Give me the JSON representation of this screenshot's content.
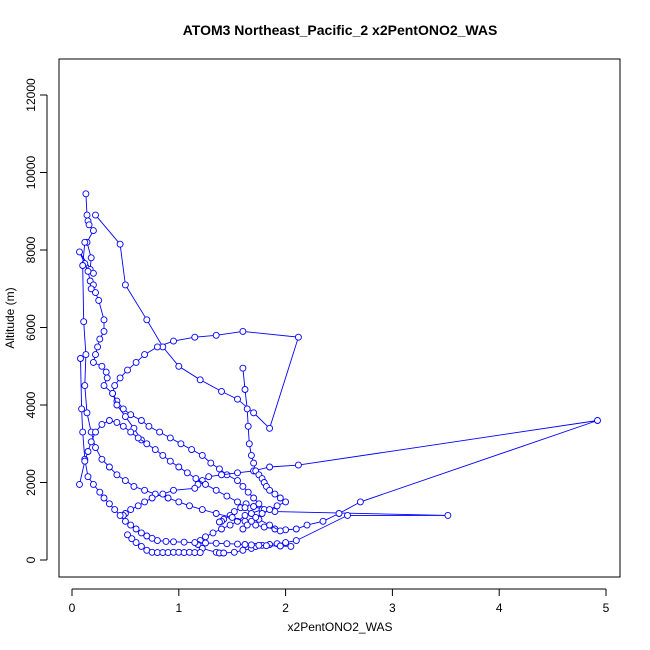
{
  "chart_data": {
    "type": "line",
    "title": "ATOM3 Northeast_Pacific_2 x2PentONO2_WAS",
    "xlabel": "x2PentONO2_WAS",
    "ylabel": "Altitude (m)",
    "xlim": [
      0,
      5
    ],
    "ylim": [
      0,
      12500
    ],
    "x_ticks": [
      0,
      1,
      2,
      3,
      4,
      5
    ],
    "y_ticks": [
      0,
      2000,
      4000,
      6000,
      8000,
      10000,
      12000
    ],
    "x_tick_labels": [
      "0",
      "1",
      "2",
      "3",
      "4",
      "5"
    ],
    "y_tick_labels": [
      "0",
      "2000",
      "4000",
      "6000",
      "8000",
      "10000",
      "12000"
    ],
    "grid": false,
    "legend": "none",
    "marker": "open-circle",
    "line_color": "#0000ff",
    "series": [
      {
        "x": [
          0.13,
          0.14,
          0.15,
          0.16,
          0.2,
          0.14,
          0.18,
          0.17,
          0.2,
          0.07,
          0.12,
          0.15,
          0.17,
          0.2,
          0.18,
          0.22,
          0.25,
          0.3,
          0.3,
          0.26,
          0.24,
          0.22,
          0.2,
          0.28,
          0.32,
          0.33,
          0.3,
          0.38,
          0.42,
          0.48,
          0.55,
          0.65,
          0.72,
          0.82,
          0.92,
          1.02,
          1.12,
          1.22,
          1.3,
          1.38,
          1.45,
          1.55,
          1.6,
          1.65,
          1.7,
          1.75,
          1.78,
          1.62,
          1.55,
          1.48,
          1.4,
          1.32,
          1.25,
          1.2,
          1.18,
          1.22,
          1.35,
          1.38,
          1.42,
          1.52,
          1.6,
          1.68,
          1.72,
          1.78,
          1.85,
          1.92,
          2.0,
          2.1,
          2.58,
          3.52,
          1.9,
          1.8,
          1.7,
          1.63,
          1.58,
          1.52,
          1.48,
          1.42,
          1.4,
          1.38
        ],
        "y": [
          9450,
          8900,
          8750,
          8650,
          8500,
          8200,
          7800,
          7500,
          7400,
          7950,
          7650,
          7450,
          7200,
          7100,
          7000,
          6900,
          6700,
          6200,
          5900,
          5700,
          5500,
          5300,
          5100,
          5000,
          4850,
          4700,
          4500,
          4300,
          4100,
          3900,
          3750,
          3600,
          3450,
          3300,
          3150,
          3000,
          2850,
          2700,
          2500,
          2350,
          2200,
          2050,
          1900,
          1750,
          1600,
          1450,
          1300,
          1150,
          1000,
          900,
          800,
          700,
          600,
          500,
          400,
          300,
          200,
          180,
          180,
          200,
          250,
          300,
          350,
          380,
          400,
          420,
          450,
          500,
          1150,
          1150,
          1250,
          1300,
          1380,
          1450,
          1350,
          1250,
          1150,
          1050,
          1000,
          980
        ]
      },
      {
        "x": [
          0.12,
          0.1,
          0.11,
          0.13,
          0.12,
          0.14,
          0.18,
          0.22,
          0.28,
          0.35,
          0.42,
          0.5,
          0.58,
          0.68,
          0.78,
          0.9,
          1.0,
          1.1,
          1.22,
          1.35,
          1.5,
          1.62,
          1.72,
          1.8,
          1.9,
          2.0,
          2.1,
          2.2,
          2.35,
          2.5,
          2.7,
          4.92,
          2.12,
          1.85,
          1.7,
          1.55,
          1.4,
          1.28,
          1.22,
          1.18,
          1.15,
          0.95,
          0.85,
          0.75,
          0.68,
          0.62,
          0.55,
          0.5,
          0.48
        ],
        "y": [
          8200,
          7600,
          6150,
          5300,
          4500,
          3800,
          3300,
          2900,
          2600,
          2400,
          2200,
          2050,
          1900,
          1800,
          1700,
          1600,
          1500,
          1400,
          1300,
          1200,
          1100,
          1000,
          900,
          850,
          800,
          780,
          800,
          900,
          1000,
          1200,
          1500,
          3600,
          2450,
          2400,
          2300,
          2250,
          2200,
          2150,
          2050,
          1950,
          1850,
          1800,
          1700,
          1600,
          1500,
          1400,
          1300,
          1200,
          1150
        ]
      },
      {
        "x": [
          0.22,
          0.45,
          0.5,
          0.7,
          0.85,
          1.0,
          1.2,
          1.4,
          1.55,
          1.7,
          1.85,
          2.12,
          1.6,
          1.35,
          1.15,
          0.95,
          0.8,
          0.68,
          0.6,
          0.52,
          0.45,
          0.4,
          0.38,
          0.42,
          0.5,
          0.58,
          0.65
        ],
        "y": [
          8900,
          8150,
          7100,
          6200,
          5500,
          5000,
          4650,
          4350,
          4150,
          3800,
          3400,
          5750,
          5900,
          5800,
          5750,
          5650,
          5500,
          5300,
          5100,
          4900,
          4700,
          4500,
          4300,
          4000,
          3700,
          3400,
          3100
        ]
      },
      {
        "x": [
          0.08,
          0.09,
          0.1,
          0.12,
          0.15,
          0.2,
          0.26,
          0.3,
          0.35,
          0.4,
          0.45,
          0.5,
          0.55,
          0.6,
          0.65,
          0.7,
          0.75,
          0.8,
          0.88,
          0.95,
          1.05,
          1.15,
          1.25,
          1.35,
          1.45,
          1.55,
          1.62,
          1.68,
          1.75,
          1.82,
          1.95,
          2.05
        ],
        "y": [
          5200,
          3900,
          3300,
          2600,
          2150,
          1950,
          1750,
          1600,
          1450,
          1300,
          1150,
          1000,
          900,
          800,
          700,
          620,
          560,
          500,
          480,
          470,
          460,
          450,
          440,
          430,
          420,
          410,
          400,
          390,
          380,
          370,
          360,
          350
        ]
      },
      {
        "x": [
          0.07,
          0.12,
          0.15,
          0.18,
          0.22,
          0.28,
          0.35,
          0.42,
          0.48,
          0.55,
          0.62,
          0.7,
          0.78,
          0.85,
          0.92,
          1.0,
          1.08,
          1.16,
          1.25,
          1.35,
          1.45,
          1.55,
          1.62,
          1.68,
          1.75,
          1.85,
          1.95
        ],
        "y": [
          1950,
          2550,
          2800,
          3050,
          3300,
          3500,
          3600,
          3550,
          3450,
          3300,
          3150,
          3000,
          2850,
          2700,
          2550,
          2400,
          2250,
          2100,
          1950,
          1800,
          1650,
          1500,
          1350,
          1200,
          1050,
          900,
          750
        ]
      },
      {
        "x": [
          1.6,
          1.62,
          1.64,
          1.65,
          1.66,
          1.68,
          1.7,
          1.72,
          1.75,
          1.78,
          1.8,
          1.82,
          1.85,
          1.9,
          1.95,
          2.0,
          1.92,
          1.85,
          1.78,
          1.72,
          1.68,
          1.64,
          1.6
        ],
        "y": [
          4950,
          4400,
          3900,
          3450,
          3000,
          2700,
          2500,
          2300,
          2200,
          2100,
          2000,
          1900,
          1800,
          1700,
          1600,
          1500,
          1400,
          1300,
          1200,
          1100,
          1000,
          900,
          800
        ]
      },
      {
        "x": [
          0.52,
          0.56,
          0.6,
          0.65,
          0.7,
          0.75,
          0.8,
          0.85,
          0.9,
          0.95,
          1.0,
          1.05,
          1.1,
          1.15,
          1.2
        ],
        "y": [
          650,
          550,
          450,
          350,
          250,
          200,
          190,
          190,
          190,
          200,
          200,
          190,
          200,
          190,
          190
        ]
      }
    ]
  }
}
